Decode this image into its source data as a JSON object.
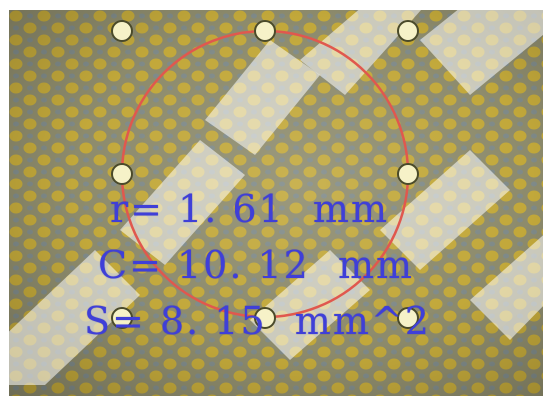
{
  "measurement": {
    "radius_text": "r= 1. 61  mm",
    "circumference_text": "C= 10. 12  mm",
    "area_text": "S= 8. 15  mm^2"
  },
  "colors": {
    "circle": "#e0584e",
    "readout": "#3f3fd8",
    "handle_fill": "#f6f2c8",
    "handle_stroke": "#4a4a2a",
    "watermark": "#ffffff"
  }
}
